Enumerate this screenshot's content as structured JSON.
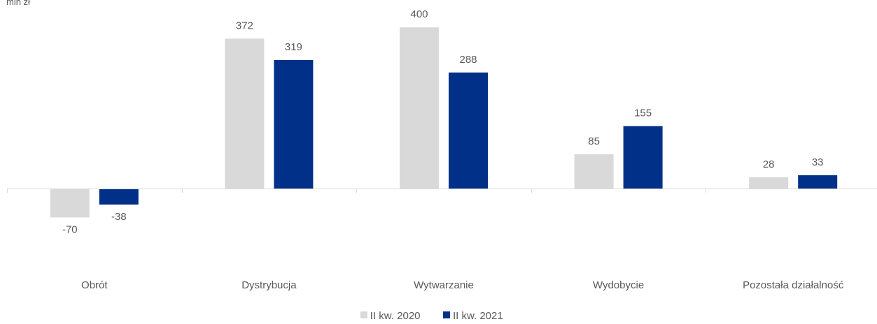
{
  "chart_data": {
    "type": "bar",
    "unit_label": "mln zł",
    "categories": [
      "Obrót",
      "Dystrybucja",
      "Wytwarzanie",
      "Wydobycie",
      "Pozostała działalność"
    ],
    "series": [
      {
        "name": "II kw. 2020",
        "color": "#d9d9d9",
        "values": [
          -70,
          372,
          400,
          85,
          28
        ]
      },
      {
        "name": "II kw. 2021",
        "color": "#003087",
        "values": [
          -38,
          319,
          288,
          155,
          33
        ]
      }
    ],
    "data_labels": true,
    "legend_position": "bottom",
    "grid": false
  }
}
